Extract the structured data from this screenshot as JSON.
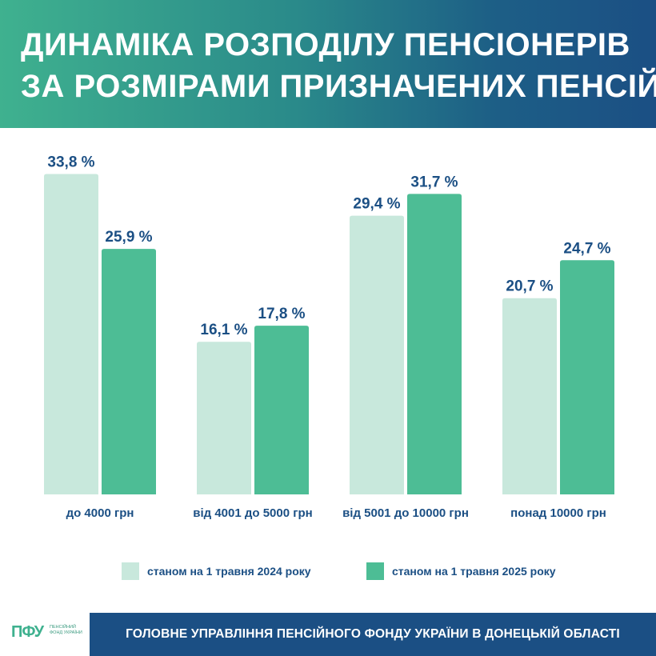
{
  "header": {
    "title_line1": "ДИНАМІКА РОЗПОДІЛУ ПЕНСІОНЕРІВ",
    "title_line2": "ЗА РОЗМІРАМИ ПРИЗНАЧЕНИХ ПЕНСІЙ"
  },
  "chart_data": {
    "type": "bar",
    "categories": [
      "до 4000 грн",
      "від 4001 до 5000 грн",
      "від 5001 до 10000 грн",
      "понад 10000 грн"
    ],
    "series": [
      {
        "name": "станом на 1 травня 2024 року",
        "values": [
          33.8,
          16.1,
          29.4,
          20.7
        ],
        "labels": [
          "33,8 %",
          "16,1 %",
          "29,4 %",
          "20,7 %"
        ],
        "color": "#c8e8dc"
      },
      {
        "name": "станом на 1 травня 2025 року",
        "values": [
          25.9,
          17.8,
          31.7,
          24.7
        ],
        "labels": [
          "25,9 %",
          "17,8 %",
          "31,7 %",
          "24,7 %"
        ],
        "color": "#4dbd95"
      }
    ],
    "unit": "%",
    "legend_position": "bottom",
    "grid": false,
    "label_color": "#1b4f84"
  },
  "legend": {
    "item1": "станом на 1 травня 2024 року",
    "item2": "станом на 1 травня 2025 року"
  },
  "footer": {
    "logo_mark": "ПФУ",
    "logo_text": "ПЕНСІЙНИЙ ФОНД УКРАЇНИ",
    "org_name": "ГОЛОВНЕ УПРАВЛІННЯ ПЕНСІЙНОГО ФОНДУ УКРАЇНИ В ДОНЕЦЬКІЙ ОБЛАСТІ"
  },
  "colors": {
    "brand_blue": "#1b4f84",
    "brand_green": "#3fb18f",
    "bar_2024": "#c8e8dc",
    "bar_2025": "#4dbd95"
  }
}
